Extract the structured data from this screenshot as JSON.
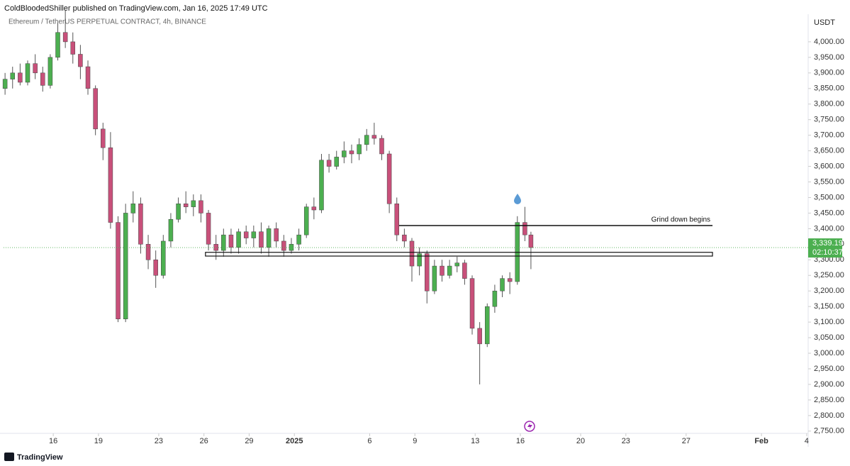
{
  "header": {
    "publisher": "ColdBloodedShiller published on TradingView.com, Jan 16, 2025 17:49 UTC",
    "logo": "TradingView"
  },
  "chart_data": {
    "type": "candlestick",
    "title": "Ethereum / TetherUS PERPETUAL CONTRACT, 4h, BINANCE",
    "y_unit": "USDT",
    "up_color": "#4caf50",
    "down_color": "#c8507a",
    "xlim": [
      12.7,
      66.1
    ],
    "xticks": [
      {
        "value": 16,
        "label": "16"
      },
      {
        "value": 19,
        "label": "19"
      },
      {
        "value": 23,
        "label": "23"
      },
      {
        "value": 26,
        "label": "26"
      },
      {
        "value": 29,
        "label": "29"
      },
      {
        "value": 32,
        "label": "2025"
      },
      {
        "value": 37,
        "label": "6"
      },
      {
        "value": 40,
        "label": "9"
      },
      {
        "value": 44,
        "label": "13"
      },
      {
        "value": 47,
        "label": "16"
      },
      {
        "value": 51,
        "label": "20"
      },
      {
        "value": 54,
        "label": "23"
      },
      {
        "value": 58,
        "label": "27"
      },
      {
        "value": 63,
        "label": "Feb"
      },
      {
        "value": 66,
        "label": "4"
      }
    ],
    "ylim": [
      2745,
      4100
    ],
    "yticks": [
      {
        "value": 2750,
        "label": "2,750.00"
      },
      {
        "value": 2800,
        "label": "2,800.00"
      },
      {
        "value": 2850,
        "label": "2,850.00"
      },
      {
        "value": 2900,
        "label": "2,900.00"
      },
      {
        "value": 2950,
        "label": "2,950.00"
      },
      {
        "value": 3000,
        "label": "3,000.00"
      },
      {
        "value": 3050,
        "label": "3,050.00"
      },
      {
        "value": 3100,
        "label": "3,100.00"
      },
      {
        "value": 3150,
        "label": "3,150.00"
      },
      {
        "value": 3200,
        "label": "3,200.00"
      },
      {
        "value": 3250,
        "label": "3,250.00"
      },
      {
        "value": 3300,
        "label": "3,300.00"
      },
      {
        "value": 3350,
        "label": "3,350.00"
      },
      {
        "value": 3400,
        "label": "3,400.00"
      },
      {
        "value": 3450,
        "label": "3,450.00"
      },
      {
        "value": 3500,
        "label": "3,500.00"
      },
      {
        "value": 3550,
        "label": "3,550.00"
      },
      {
        "value": 3600,
        "label": "3,600.00"
      },
      {
        "value": 3650,
        "label": "3,650.00"
      },
      {
        "value": 3700,
        "label": "3,700.00"
      },
      {
        "value": 3750,
        "label": "3,750.00"
      },
      {
        "value": 3800,
        "label": "3,800.00"
      },
      {
        "value": 3850,
        "label": "3,850.00"
      },
      {
        "value": 3900,
        "label": "3,900.00"
      },
      {
        "value": 3950,
        "label": "3,950.00"
      },
      {
        "value": 4000,
        "label": "4,000.00"
      }
    ],
    "candles": [
      [
        12.8,
        3850,
        3900,
        3830,
        3880
      ],
      [
        13.3,
        3880,
        3920,
        3850,
        3900
      ],
      [
        13.8,
        3900,
        3930,
        3860,
        3870
      ],
      [
        14.3,
        3870,
        3940,
        3860,
        3930
      ],
      [
        14.8,
        3930,
        3960,
        3880,
        3900
      ],
      [
        15.3,
        3900,
        3920,
        3840,
        3860
      ],
      [
        15.8,
        3860,
        3960,
        3850,
        3950
      ],
      [
        16.3,
        3950,
        4060,
        3940,
        4030
      ],
      [
        16.8,
        4030,
        4100,
        3980,
        4000
      ],
      [
        17.3,
        4000,
        4030,
        3930,
        3960
      ],
      [
        17.8,
        3960,
        3990,
        3880,
        3920
      ],
      [
        18.3,
        3920,
        3940,
        3830,
        3850
      ],
      [
        18.8,
        3850,
        3860,
        3700,
        3720
      ],
      [
        19.3,
        3720,
        3740,
        3620,
        3660
      ],
      [
        19.8,
        3660,
        3710,
        3400,
        3420
      ],
      [
        20.3,
        3420,
        3440,
        3100,
        3110
      ],
      [
        20.8,
        3110,
        3480,
        3100,
        3450
      ],
      [
        21.3,
        3450,
        3520,
        3420,
        3480
      ],
      [
        21.8,
        3480,
        3500,
        3320,
        3350
      ],
      [
        22.3,
        3350,
        3380,
        3270,
        3300
      ],
      [
        22.8,
        3300,
        3330,
        3210,
        3250
      ],
      [
        23.3,
        3250,
        3380,
        3240,
        3360
      ],
      [
        23.8,
        3360,
        3450,
        3340,
        3430
      ],
      [
        24.3,
        3430,
        3500,
        3420,
        3480
      ],
      [
        24.8,
        3480,
        3520,
        3450,
        3470
      ],
      [
        25.3,
        3470,
        3510,
        3440,
        3490
      ],
      [
        25.8,
        3490,
        3510,
        3420,
        3450
      ],
      [
        26.3,
        3450,
        3460,
        3330,
        3350
      ],
      [
        26.8,
        3350,
        3380,
        3300,
        3330
      ],
      [
        27.3,
        3330,
        3400,
        3310,
        3380
      ],
      [
        27.8,
        3380,
        3400,
        3320,
        3340
      ],
      [
        28.3,
        3340,
        3400,
        3320,
        3390
      ],
      [
        28.8,
        3390,
        3410,
        3350,
        3370
      ],
      [
        29.3,
        3370,
        3410,
        3340,
        3390
      ],
      [
        29.8,
        3390,
        3420,
        3320,
        3340
      ],
      [
        30.3,
        3340,
        3410,
        3310,
        3400
      ],
      [
        30.8,
        3400,
        3420,
        3340,
        3360
      ],
      [
        31.3,
        3360,
        3380,
        3310,
        3330
      ],
      [
        31.8,
        3330,
        3370,
        3320,
        3350
      ],
      [
        32.3,
        3350,
        3400,
        3330,
        3380
      ],
      [
        32.8,
        3380,
        3480,
        3370,
        3470
      ],
      [
        33.3,
        3470,
        3500,
        3430,
        3460
      ],
      [
        33.8,
        3460,
        3640,
        3450,
        3620
      ],
      [
        34.3,
        3620,
        3640,
        3580,
        3600
      ],
      [
        34.8,
        3600,
        3650,
        3590,
        3630
      ],
      [
        35.3,
        3630,
        3680,
        3610,
        3650
      ],
      [
        35.8,
        3650,
        3670,
        3610,
        3640
      ],
      [
        36.3,
        3640,
        3690,
        3620,
        3670
      ],
      [
        36.8,
        3670,
        3720,
        3650,
        3700
      ],
      [
        37.3,
        3700,
        3740,
        3670,
        3690
      ],
      [
        37.8,
        3690,
        3700,
        3620,
        3640
      ],
      [
        38.3,
        3640,
        3650,
        3450,
        3480
      ],
      [
        38.8,
        3480,
        3500,
        3360,
        3380
      ],
      [
        39.3,
        3380,
        3400,
        3340,
        3360
      ],
      [
        39.8,
        3360,
        3370,
        3230,
        3280
      ],
      [
        40.3,
        3280,
        3340,
        3250,
        3320
      ],
      [
        40.8,
        3320,
        3330,
        3160,
        3200
      ],
      [
        41.3,
        3200,
        3300,
        3190,
        3280
      ],
      [
        41.8,
        3280,
        3300,
        3230,
        3250
      ],
      [
        42.3,
        3250,
        3300,
        3240,
        3280
      ],
      [
        42.8,
        3280,
        3310,
        3260,
        3290
      ],
      [
        43.3,
        3290,
        3300,
        3220,
        3240
      ],
      [
        43.8,
        3240,
        3250,
        3060,
        3080
      ],
      [
        44.3,
        3080,
        3100,
        2900,
        3030
      ],
      [
        44.8,
        3030,
        3160,
        3020,
        3150
      ],
      [
        45.3,
        3150,
        3220,
        3130,
        3200
      ],
      [
        45.8,
        3200,
        3250,
        3180,
        3240
      ],
      [
        46.3,
        3240,
        3260,
        3190,
        3230
      ],
      [
        46.8,
        3230,
        3440,
        3220,
        3420
      ],
      [
        47.3,
        3420,
        3470,
        3360,
        3380
      ],
      [
        47.7,
        3380,
        3390,
        3270,
        3339.19
      ]
    ],
    "annotation": {
      "text": "Grind down begins",
      "y": 3410,
      "x": [
        38.95,
        59.75
      ]
    },
    "zone": {
      "y": [
        3312,
        3324
      ],
      "x": [
        26.1,
        59.75
      ]
    },
    "last_price": {
      "value": 3339.19,
      "label": "3,339.19",
      "countdown": "02:10:37"
    }
  }
}
